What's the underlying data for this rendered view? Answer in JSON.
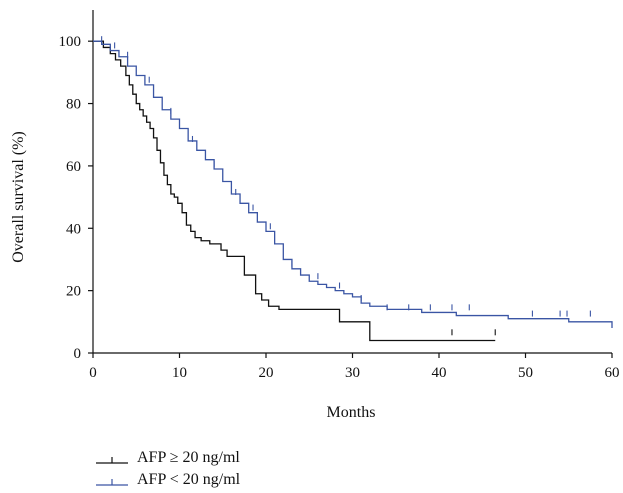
{
  "chart_data": {
    "type": "line",
    "step": true,
    "title": "",
    "xlabel": "Months",
    "ylabel": "Overall survival (%)",
    "xlim": [
      0,
      60
    ],
    "ylim": [
      0,
      110
    ],
    "xticks": [
      0,
      10,
      20,
      30,
      40,
      50,
      60
    ],
    "yticks": [
      0,
      20,
      40,
      60,
      80,
      100
    ],
    "grid": false,
    "legend_position": "bottom-left",
    "series": [
      {
        "name": "AFP ≥ 20 ng/ml",
        "color": "#111111",
        "x": [
          0,
          1.2,
          2,
          2.6,
          3.2,
          3.8,
          4.2,
          4.6,
          5,
          5.4,
          5.8,
          6.2,
          6.6,
          7,
          7.4,
          7.8,
          8.2,
          8.6,
          9,
          9.4,
          9.8,
          10.3,
          10.8,
          11.3,
          11.8,
          12.5,
          13.5,
          14.8,
          15.5,
          17.5,
          18.8,
          19.5,
          20.3,
          21.5,
          28.5,
          32,
          46.5
        ],
        "y": [
          100,
          98,
          96,
          94,
          92,
          89,
          86,
          83,
          80,
          78,
          76,
          74,
          72,
          69,
          65,
          61,
          57,
          54,
          51,
          50,
          48,
          45,
          41,
          39,
          37,
          36,
          35,
          33,
          31,
          25,
          19,
          17,
          15,
          14,
          10,
          4,
          4
        ],
        "censor_x": [
          41.5,
          46.5
        ],
        "censor_y": [
          6,
          6
        ]
      },
      {
        "name": "AFP < 20 ng/ml",
        "color": "#3a55a4",
        "x": [
          0,
          1,
          2,
          3,
          4,
          5,
          6,
          7,
          8,
          9,
          10,
          11,
          12,
          13,
          14,
          15,
          16,
          17,
          18,
          19,
          20,
          21,
          22,
          23,
          24,
          25,
          26,
          27,
          28,
          29,
          30,
          31,
          32,
          34,
          36,
          38,
          40,
          42,
          45,
          48,
          51,
          55,
          60
        ],
        "y": [
          100,
          99,
          97,
          95,
          92,
          89,
          86,
          82,
          78,
          75,
          72,
          68,
          65,
          62,
          59,
          55,
          51,
          48,
          45,
          42,
          39,
          35,
          30,
          27,
          25,
          23,
          22,
          21,
          20,
          19,
          18,
          16,
          15,
          14,
          14,
          13,
          13,
          12,
          12,
          11,
          11,
          10,
          8
        ],
        "censor_x": [
          1,
          2.5,
          4,
          6.5,
          9,
          11.5,
          14,
          16.5,
          18.5,
          20.5,
          23,
          26,
          28.5,
          31,
          34,
          36.5,
          39,
          41.5,
          43.5,
          50.8,
          54,
          54.8,
          57.5
        ],
        "censor_y": [
          100,
          98,
          95,
          87,
          77,
          68,
          60,
          51,
          46,
          40,
          28,
          24,
          21,
          17,
          14,
          14,
          14,
          14,
          14,
          12,
          12,
          12,
          12
        ]
      }
    ]
  }
}
